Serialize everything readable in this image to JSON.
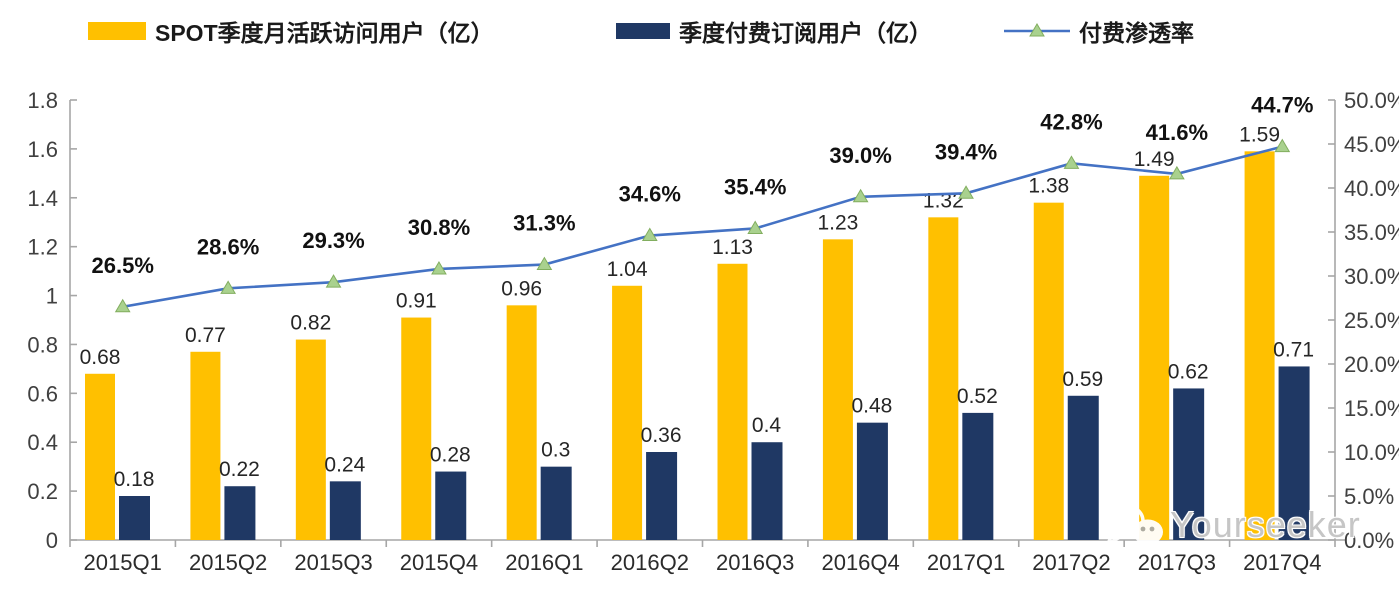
{
  "legend": [
    {
      "label": "SPOT季度月活跃访问用户（亿）",
      "color": "#FFC000",
      "type": "bar"
    },
    {
      "label": "季度付费订阅用户（亿）",
      "color": "#1F3864",
      "type": "bar"
    },
    {
      "label": "付费渗透率",
      "color": "#4472C4",
      "marker_color": "#A9D18E",
      "type": "line"
    }
  ],
  "watermark": {
    "text": "Yourseeker",
    "icon": "wechat-icon"
  },
  "chart_data": {
    "type": "bar",
    "subtype": "grouped-bars-with-line",
    "categories": [
      "2015Q1",
      "2015Q2",
      "2015Q3",
      "2015Q4",
      "2016Q1",
      "2016Q2",
      "2016Q3",
      "2016Q4",
      "2017Q1",
      "2017Q2",
      "2017Q3",
      "2017Q4"
    ],
    "series": [
      {
        "name": "SPOT季度月活跃访问用户（亿）",
        "type": "bar",
        "axis": "left",
        "color": "#FFC000",
        "values": [
          0.68,
          0.77,
          0.82,
          0.91,
          0.96,
          1.04,
          1.13,
          1.23,
          1.32,
          1.38,
          1.49,
          1.59
        ],
        "labels": [
          "0.68",
          "0.77",
          "0.82",
          "0.91",
          "0.96",
          "1.04",
          "1.13",
          "1.23",
          "1.32",
          "1.38",
          "1.49",
          "1.59"
        ]
      },
      {
        "name": "季度付费订阅用户（亿）",
        "type": "bar",
        "axis": "left",
        "color": "#1F3864",
        "values": [
          0.18,
          0.22,
          0.24,
          0.28,
          0.3,
          0.36,
          0.4,
          0.48,
          0.52,
          0.59,
          0.62,
          0.71
        ],
        "labels": [
          "0.18",
          "0.22",
          "0.24",
          "0.28",
          "0.3",
          "0.36",
          "0.4",
          "0.48",
          "0.52",
          "0.59",
          "0.62",
          "0.71"
        ]
      },
      {
        "name": "付费渗透率",
        "type": "line",
        "axis": "right",
        "color": "#4472C4",
        "marker_color": "#A9D18E",
        "marker_edge": "#82AE5F",
        "values": [
          26.5,
          28.6,
          29.3,
          30.8,
          31.3,
          34.6,
          35.4,
          39.0,
          39.4,
          42.8,
          41.6,
          44.7
        ],
        "labels": [
          "26.5%",
          "28.6%",
          "29.3%",
          "30.8%",
          "31.3%",
          "34.6%",
          "35.4%",
          "39.0%",
          "39.4%",
          "42.8%",
          "41.6%",
          "44.7%"
        ]
      }
    ],
    "left_axis": {
      "min": 0,
      "max": 1.8,
      "step": 0.2,
      "ticks": [
        "1.8",
        "1.6",
        "1.4",
        "1.2",
        "1",
        "0.8",
        "0.6",
        "0.4",
        "0.2",
        "0"
      ]
    },
    "right_axis": {
      "min": 0,
      "max": 50,
      "step": 5,
      "ticks": [
        "50.0%",
        "45.0%",
        "40.0%",
        "35.0%",
        "30.0%",
        "25.0%",
        "20.0%",
        "15.0%",
        "10.0%",
        "5.0%",
        "0.0%"
      ]
    },
    "grid": false,
    "legend_position": "top",
    "axis_color": "#A6A6A6"
  }
}
